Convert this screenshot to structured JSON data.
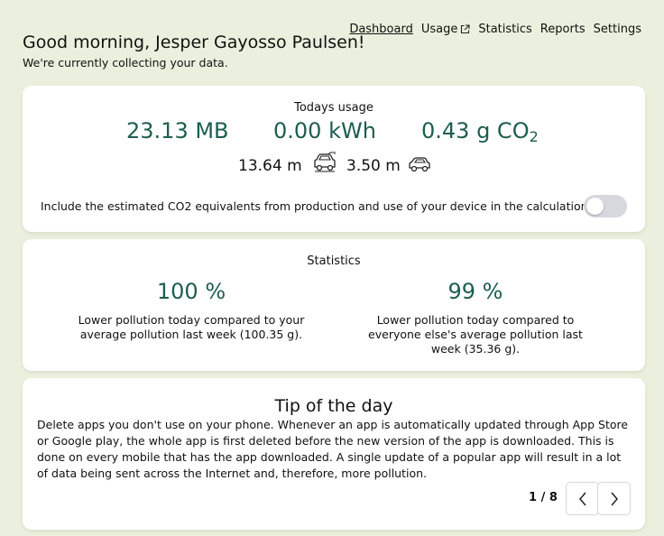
{
  "nav": {
    "items": [
      {
        "label": "Dashboard",
        "active": true
      },
      {
        "label": "Usage",
        "external": true
      },
      {
        "label": "Statistics"
      },
      {
        "label": "Reports"
      },
      {
        "label": "Settings"
      }
    ]
  },
  "header": {
    "greeting": "Good morning, Jesper Gayosso Paulsen!",
    "subtitle": "We're currently collecting your data."
  },
  "usage": {
    "title": "Todays usage",
    "data": "23.13 MB",
    "energy": "0.00 kWh",
    "co2_value": "0.43 g CO",
    "co2_sub": "2",
    "ev_distance": "13.64 m",
    "car_distance": "3.50 m",
    "ev_icon": "electric-car-icon",
    "car_icon": "car-icon",
    "toggle_label": "Include the estimated CO2 equivalents from production and use of your device in the calculations",
    "toggle_on": false
  },
  "statistics": {
    "title": "Statistics",
    "left": {
      "value": "100 %",
      "description": "Lower pollution today compared to your average pollution last week (100.35 g)."
    },
    "right": {
      "value": "99 %",
      "description": "Lower pollution today compared to everyone else's average pollution last week (35.36 g)."
    }
  },
  "tip": {
    "title": "Tip of the day",
    "body": "Delete apps you don't use on your phone. Whenever an app is automatically updated through App Store or Google play, the whole app is first deleted before the new version of the app is downloaded. This is done on every mobile that has the app downloaded. A single update of a popular app will result in a lot of data being sent across the Internet and, therefore, more pollution.",
    "pager": "1 / 8"
  },
  "colors": {
    "background": "#eaf0dd",
    "accent": "#1d5e4f",
    "toggle_off": "#d6d8de"
  }
}
